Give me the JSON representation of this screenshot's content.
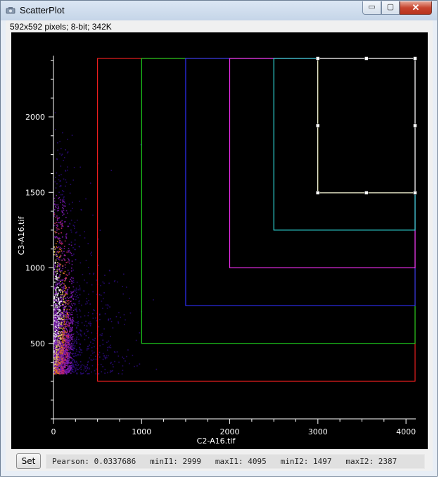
{
  "window": {
    "title": "ScatterPlot",
    "min_glyph": "▭",
    "max_glyph": "▢",
    "close_glyph": "✕"
  },
  "image_info": "592x592 pixels; 8-bit; 342K",
  "set_button": "Set",
  "stats": {
    "pearson_label": "Pearson:",
    "pearson": "0.0337686",
    "minI1_label": "minI1:",
    "minI1": "2999",
    "maxI1_label": "maxI1:",
    "maxI1": "4095",
    "minI2_label": "minI2:",
    "minI2": "1497",
    "maxI2_label": "maxI2:",
    "maxI2": "2387"
  },
  "chart_data": {
    "type": "scatter",
    "xlabel": "C2-A16.tif",
    "ylabel": "C3-A16.tif",
    "xlim": [
      0,
      4095
    ],
    "ylim": [
      0,
      2387
    ],
    "xticks": [
      "0",
      "1000",
      "2000",
      "3000",
      "4000"
    ],
    "yticks": [
      "500",
      "1000",
      "1500",
      "2000"
    ],
    "background": "#000000",
    "density_colors": [
      "#2a0a7a",
      "#7a1ab0",
      "#d42a6a",
      "#f07a1a",
      "#ffe060",
      "#ffffff"
    ],
    "thresholds": [
      {
        "x0": 500,
        "y0": 250,
        "color": "#ff2020"
      },
      {
        "x0": 1000,
        "y0": 500,
        "color": "#20e020"
      },
      {
        "x0": 1500,
        "y0": 750,
        "color": "#3030ff"
      },
      {
        "x0": 2000,
        "y0": 1000,
        "color": "#ff30ff"
      },
      {
        "x0": 2500,
        "y0": 1250,
        "color": "#30e0e0"
      },
      {
        "x0": 2999,
        "y0": 1497,
        "color": "#ffff40"
      }
    ],
    "selection": {
      "x0": 2999,
      "x1": 4095,
      "y0": 1497,
      "y1": 2387,
      "color": "#ffffff"
    }
  }
}
